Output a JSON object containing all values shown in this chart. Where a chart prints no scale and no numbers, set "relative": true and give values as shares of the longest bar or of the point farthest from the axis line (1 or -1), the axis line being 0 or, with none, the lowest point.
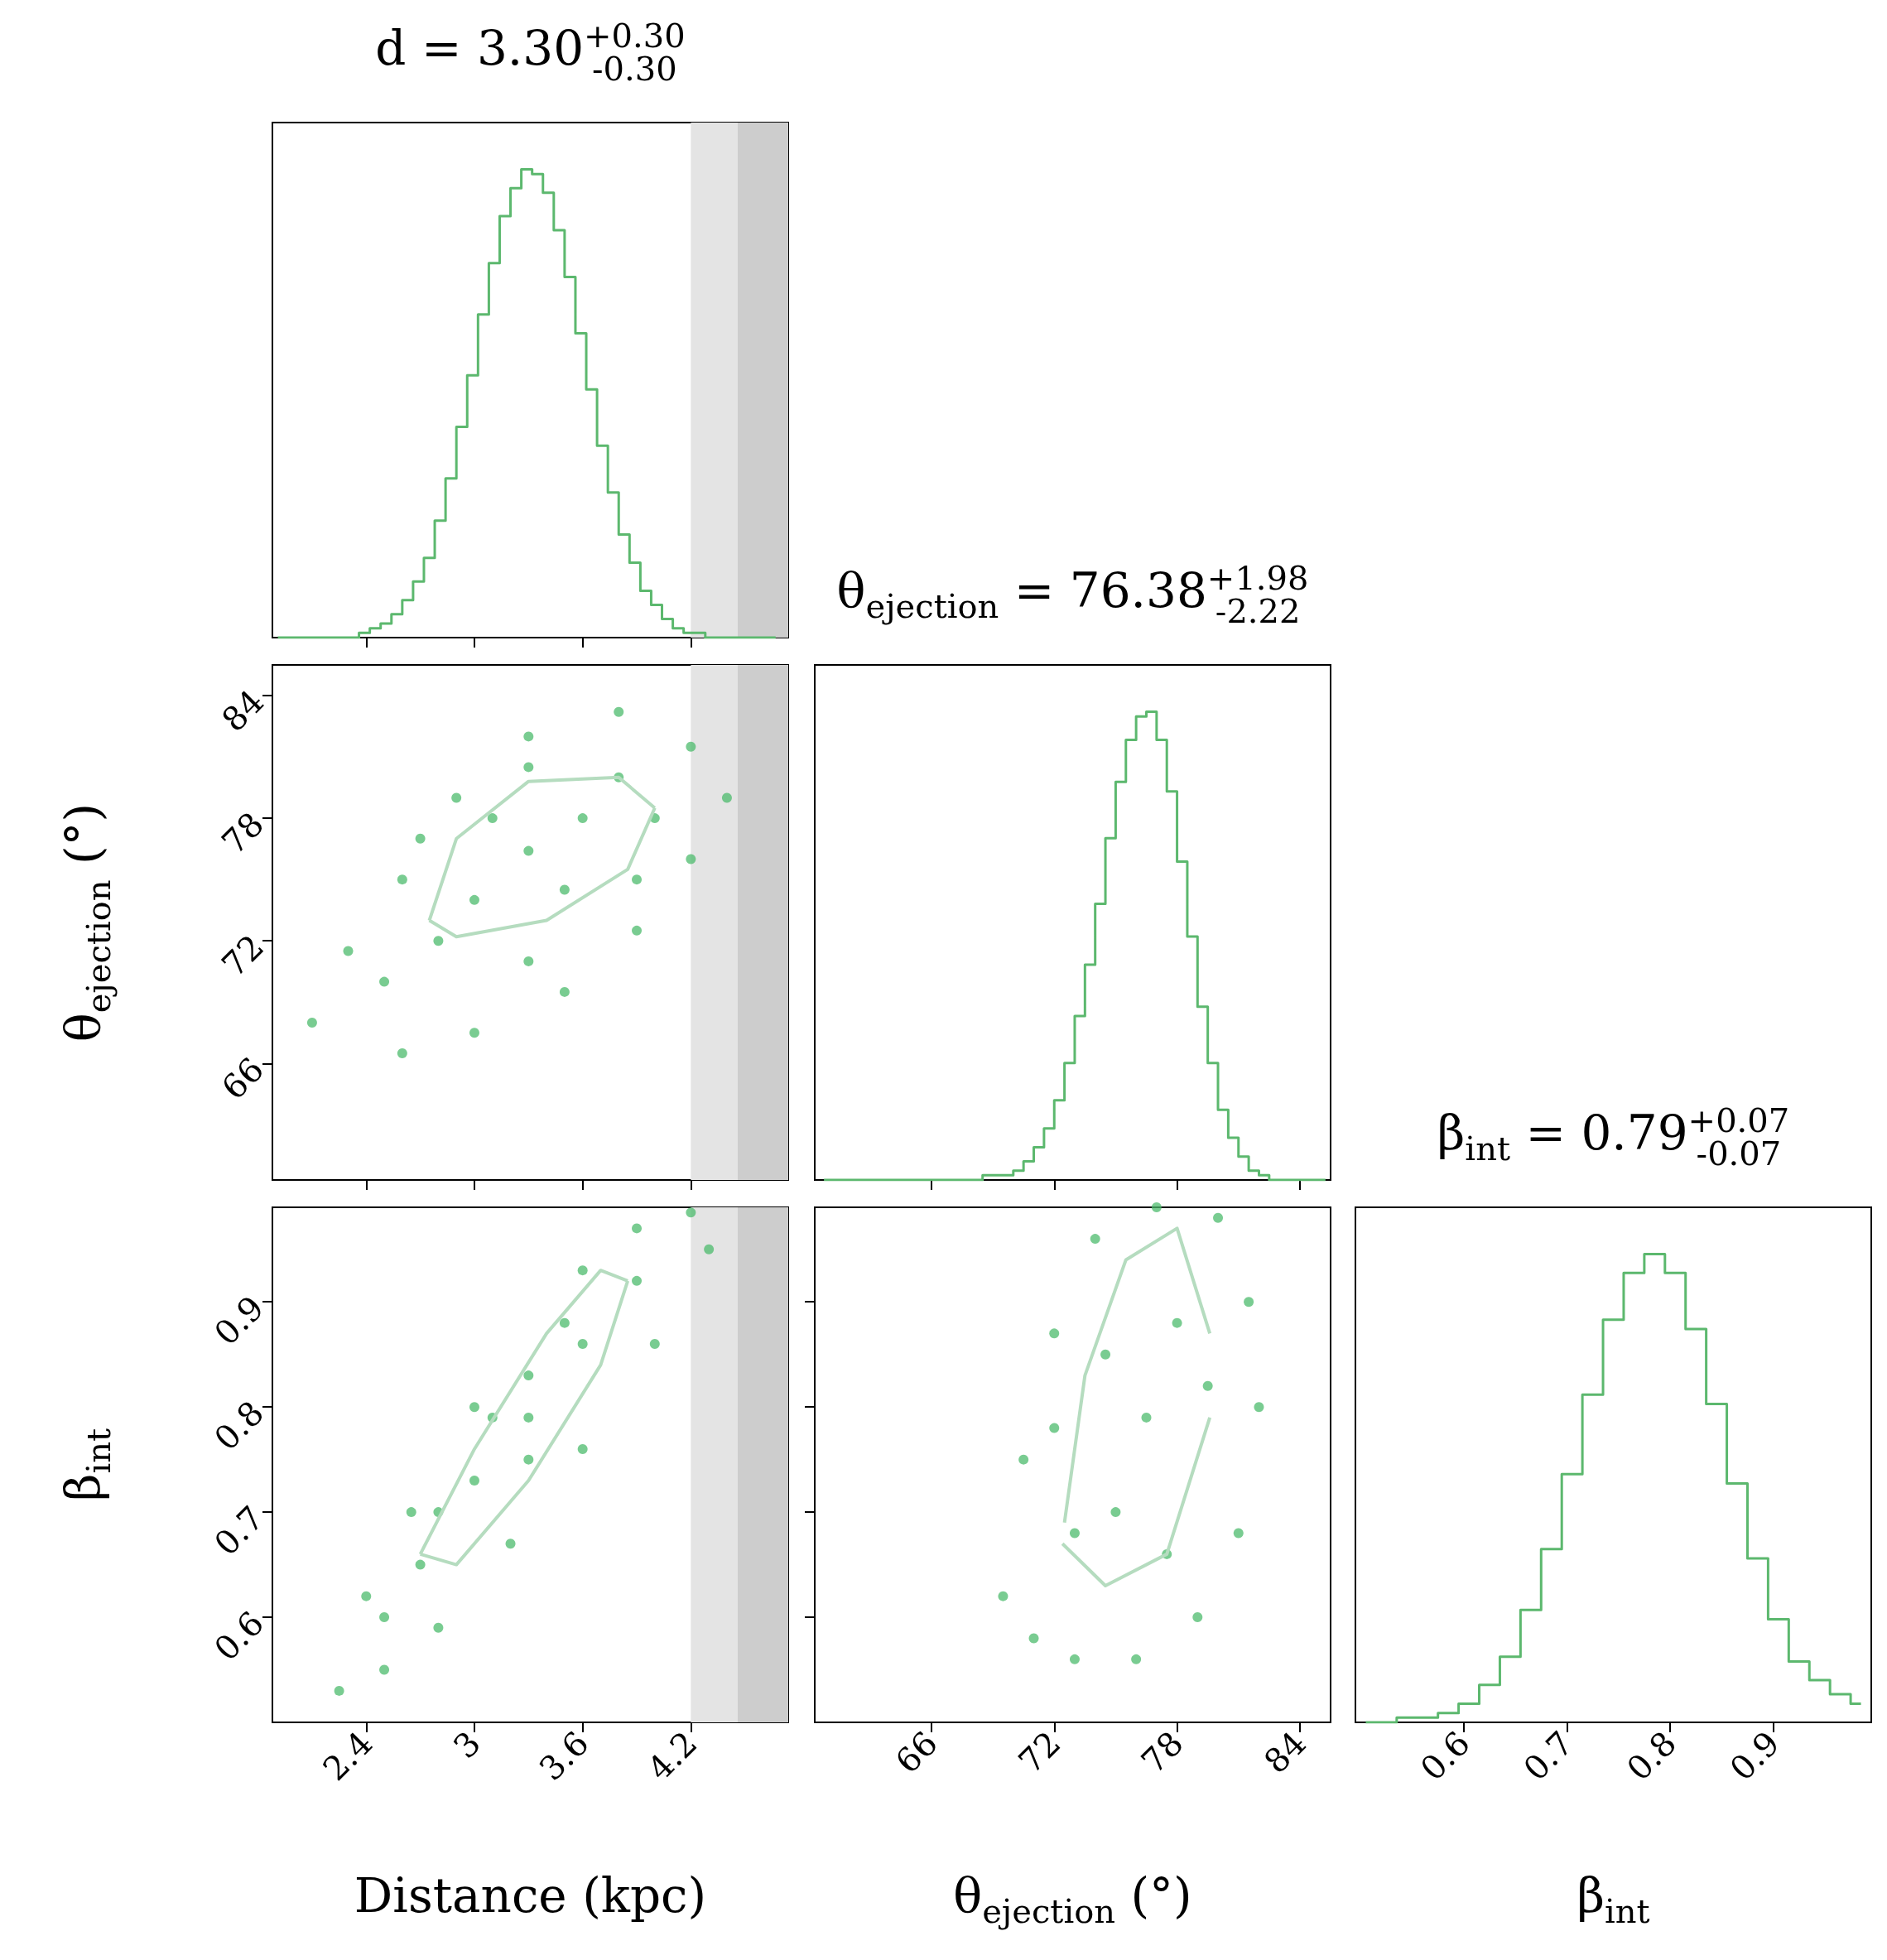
{
  "chart_data": [
    {
      "type": "step",
      "title": "d = 3.30$^{+0.30}$$_{-0.30}$",
      "relative": true,
      "color": "#5cb86e",
      "marker": "none",
      "x": [
        1.91,
        1.97,
        2.03,
        2.09,
        2.15,
        2.21,
        2.27,
        2.33,
        2.39,
        2.45,
        2.51,
        2.57,
        2.63,
        2.69,
        2.75,
        2.81,
        2.87,
        2.93,
        2.99,
        3.05,
        3.11,
        3.17,
        3.23,
        3.29,
        3.35,
        3.41,
        3.47,
        3.53,
        3.59,
        3.65,
        3.71,
        3.77,
        3.83,
        3.89,
        3.95,
        4.01,
        4.07,
        4.13,
        4.19,
        4.25,
        4.31,
        4.37,
        4.43,
        4.49,
        4.55,
        4.61,
        4.67
      ],
      "values": [
        0,
        0,
        0,
        0,
        0,
        0,
        0,
        0,
        0.01,
        0.02,
        0.03,
        0.05,
        0.08,
        0.12,
        0.17,
        0.25,
        0.34,
        0.45,
        0.56,
        0.69,
        0.8,
        0.9,
        0.96,
        1.0,
        0.99,
        0.95,
        0.87,
        0.77,
        0.65,
        0.53,
        0.41,
        0.31,
        0.22,
        0.16,
        0.1,
        0.07,
        0.04,
        0.02,
        0.01,
        0.01,
        0,
        0,
        0,
        0,
        0,
        0,
        0
      ],
      "xlim": [
        1.88,
        4.74
      ],
      "xticks": [
        2.4,
        3.0,
        3.6,
        4.2
      ],
      "tick_labels": false,
      "bands": [
        {
          "axis": "x",
          "from": 4.2,
          "to": 4.46,
          "color": "#e4e4e4"
        },
        {
          "axis": "x",
          "from": 4.46,
          "to": 4.74,
          "color": "#cdcdcd"
        }
      ]
    },
    {
      "type": "scatter",
      "ylabel": "θ$_{ejection}$ (°)",
      "xlim": [
        1.88,
        4.74
      ],
      "xticks": [
        2.4,
        3.0,
        3.6,
        4.2
      ],
      "ylim": [
        60.3,
        85.5
      ],
      "yticks": [
        66,
        72,
        78,
        84
      ],
      "tick_labels": "y",
      "series": [
        {
          "color": "#4cbb6c",
          "marker": "circle",
          "x": [
            2.1,
            2.3,
            2.6,
            2.9,
            3.3,
            3.8,
            4.2,
            4.4,
            4.2,
            3.9,
            3.5,
            3.0,
            2.6,
            3.3,
            3.0,
            3.6,
            2.8,
            3.8,
            3.1,
            3.5,
            2.5,
            4.0,
            3.3,
            3.3,
            2.7,
            3.9
          ],
          "values": [
            68,
            71.5,
            75,
            79,
            82,
            83.2,
            81.5,
            79,
            76,
            72.5,
            69.5,
            67.5,
            66.5,
            76.4,
            74,
            78,
            72,
            80,
            78,
            74.5,
            70,
            78,
            71,
            80.5,
            77,
            75
          ]
        },
        {
          "type": "line",
          "color": "#b5dcbf",
          "marker": "none",
          "x": [
            2.75,
            2.9,
            3.3,
            3.8,
            4.0
          ],
          "values": [
            73,
            77,
            79.8,
            80,
            78.5
          ]
        },
        {
          "type": "line",
          "color": "#b5dcbf",
          "marker": "none",
          "x": [
            2.75,
            2.9,
            3.4,
            3.85,
            4.0
          ],
          "values": [
            73,
            72.2,
            73,
            75.5,
            78.5
          ]
        }
      ],
      "bands": [
        {
          "axis": "x",
          "from": 4.2,
          "to": 4.46,
          "color": "#e4e4e4"
        },
        {
          "axis": "x",
          "from": 4.46,
          "to": 4.74,
          "color": "#cdcdcd"
        }
      ]
    },
    {
      "type": "step",
      "title": "θ$_{ejection}$ = 76.38$^{+1.98}$$_{-2.22}$",
      "relative": true,
      "color": "#5cb86e",
      "marker": "none",
      "x": [
        60.75,
        61.25,
        61.75,
        62.25,
        62.75,
        63.25,
        63.75,
        64.25,
        64.75,
        65.25,
        65.75,
        66.25,
        66.75,
        67.25,
        67.75,
        68.25,
        68.75,
        69.25,
        69.75,
        70.25,
        70.75,
        71.25,
        71.75,
        72.25,
        72.75,
        73.25,
        73.75,
        74.25,
        74.75,
        75.25,
        75.75,
        76.25,
        76.75,
        77.25,
        77.75,
        78.25,
        78.75,
        79.25,
        79.75,
        80.25,
        80.75,
        81.25,
        81.75,
        82.25,
        82.75,
        83.25,
        83.75,
        84.25,
        84.75,
        85.25
      ],
      "values": [
        0,
        0,
        0,
        0,
        0,
        0,
        0,
        0,
        0,
        0,
        0,
        0,
        0,
        0,
        0,
        0,
        0.01,
        0.01,
        0.01,
        0.02,
        0.04,
        0.07,
        0.11,
        0.17,
        0.25,
        0.35,
        0.46,
        0.59,
        0.73,
        0.85,
        0.94,
        0.99,
        1.0,
        0.94,
        0.83,
        0.68,
        0.52,
        0.37,
        0.25,
        0.15,
        0.09,
        0.05,
        0.02,
        0.01,
        0,
        0,
        0,
        0,
        0,
        0
      ],
      "xlim": [
        60.3,
        85.5
      ],
      "xticks": [
        66,
        72,
        78,
        84
      ],
      "tick_labels": false
    },
    {
      "type": "scatter",
      "xlabel": "Distance (kpc)",
      "ylabel": "β$_{int}$",
      "xlim": [
        1.88,
        4.74
      ],
      "xticks": [
        2.4,
        3.0,
        3.6,
        4.2
      ],
      "ylim": [
        0.5,
        0.99
      ],
      "yticks": [
        0.6,
        0.7,
        0.8,
        0.9
      ],
      "series": [
        {
          "color": "#4cbb6c",
          "marker": "circle",
          "x": [
            2.25,
            2.5,
            2.8,
            3.1,
            3.5,
            3.9,
            4.2,
            4.3,
            4.0,
            3.6,
            3.2,
            2.8,
            2.5,
            2.4,
            2.65,
            3.0,
            3.6,
            3.3,
            3.0,
            3.6,
            2.7,
            3.9,
            3.3,
            3.3
          ],
          "values": [
            0.53,
            0.6,
            0.7,
            0.79,
            0.88,
            0.97,
            0.985,
            0.95,
            0.86,
            0.76,
            0.67,
            0.59,
            0.55,
            0.62,
            0.7,
            0.8,
            0.93,
            0.79,
            0.73,
            0.86,
            0.65,
            0.92,
            0.75,
            0.83
          ]
        },
        {
          "type": "line",
          "color": "#b5dcbf",
          "marker": "none",
          "x": [
            2.7,
            3.0,
            3.4,
            3.7,
            3.85
          ],
          "values": [
            0.66,
            0.76,
            0.87,
            0.93,
            0.92
          ]
        },
        {
          "type": "line",
          "color": "#b5dcbf",
          "marker": "none",
          "x": [
            2.7,
            2.9,
            3.3,
            3.7,
            3.85
          ],
          "values": [
            0.66,
            0.65,
            0.73,
            0.84,
            0.92
          ]
        }
      ],
      "bands": [
        {
          "axis": "x",
          "from": 4.2,
          "to": 4.46,
          "color": "#e4e4e4"
        },
        {
          "axis": "x",
          "from": 4.46,
          "to": 4.74,
          "color": "#cdcdcd"
        }
      ]
    },
    {
      "type": "scatter",
      "xlabel": "θ$_{ejection}$ (°)",
      "xlim": [
        60.3,
        85.5
      ],
      "xticks": [
        66,
        72,
        78,
        84
      ],
      "ylim": [
        0.5,
        0.99
      ],
      "yticks": [
        0.6,
        0.7,
        0.8,
        0.9
      ],
      "tick_labels": "x",
      "series": [
        {
          "color": "#4cbb6c",
          "marker": "circle",
          "x": [
            69.5,
            70.5,
            72,
            74,
            77,
            80,
            81.5,
            82,
            81,
            79,
            76,
            73,
            71,
            76.5,
            75,
            78,
            73,
            79.5,
            74.5,
            77.5,
            72
          ],
          "values": [
            0.62,
            0.75,
            0.87,
            0.96,
            0.99,
            0.98,
            0.9,
            0.8,
            0.68,
            0.6,
            0.56,
            0.56,
            0.58,
            0.79,
            0.7,
            0.88,
            0.68,
            0.82,
            0.85,
            0.66,
            0.78
          ]
        },
        {
          "type": "line",
          "color": "#b5dcbf",
          "marker": "none",
          "x": [
            72.5,
            73.5,
            75.5,
            78,
            79.6
          ],
          "values": [
            0.69,
            0.83,
            0.94,
            0.97,
            0.87
          ]
        },
        {
          "type": "line",
          "color": "#b5dcbf",
          "marker": "none",
          "x": [
            72.4,
            74.5,
            77.5,
            79.6
          ],
          "values": [
            0.67,
            0.63,
            0.66,
            0.79
          ]
        }
      ]
    },
    {
      "type": "step",
      "title": "β$_{int}$ = 0.79$^{+0.07}$$_{-0.07}$",
      "xlabel": "β$_{int}$",
      "relative": true,
      "color": "#5cb86e",
      "marker": "none",
      "x": [
        0.505,
        0.525,
        0.545,
        0.565,
        0.585,
        0.605,
        0.625,
        0.645,
        0.665,
        0.685,
        0.705,
        0.725,
        0.745,
        0.765,
        0.785,
        0.805,
        0.825,
        0.845,
        0.865,
        0.885,
        0.905,
        0.925,
        0.945,
        0.965,
        0.985
      ],
      "values": [
        0,
        0,
        0.01,
        0.01,
        0.02,
        0.04,
        0.08,
        0.14,
        0.24,
        0.37,
        0.53,
        0.7,
        0.86,
        0.96,
        1.0,
        0.96,
        0.84,
        0.68,
        0.51,
        0.35,
        0.22,
        0.13,
        0.09,
        0.06,
        0.04
      ],
      "xlim": [
        0.495,
        0.995
      ],
      "xticks": [
        0.6,
        0.7,
        0.8,
        0.9
      ],
      "tick_labels": "x"
    }
  ]
}
